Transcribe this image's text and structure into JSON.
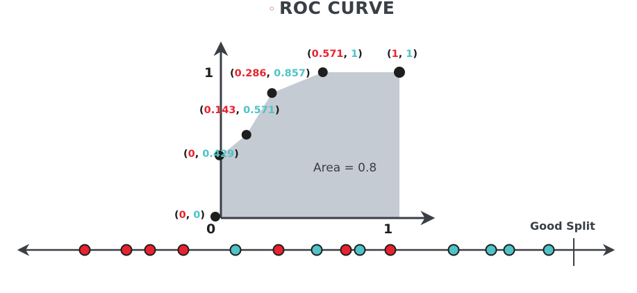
{
  "title": {
    "bullet": "◦",
    "text": "ROC CURVE"
  },
  "colors": {
    "red": "#e8232f",
    "teal": "#4fc3c7",
    "axis": "#3a3f46",
    "fill": "#c5cbd2",
    "point": "#1e1e1e"
  },
  "chart_data": {
    "type": "area",
    "x": [
      0,
      0,
      0.143,
      0.286,
      0.571,
      1
    ],
    "y": [
      0,
      0.429,
      0.571,
      0.857,
      1,
      1
    ],
    "xlim": [
      0,
      1
    ],
    "ylim": [
      0,
      1
    ],
    "x_ticks": [
      "0",
      "1"
    ],
    "y_ticks": [
      "1"
    ],
    "annotation": "Area = 0.8",
    "point_labels": [
      {
        "x": "0",
        "y": "0"
      },
      {
        "x": "0",
        "y": "0.429"
      },
      {
        "x": "0.143",
        "y": "0.571"
      },
      {
        "x": "0.286",
        "y": "0.857"
      },
      {
        "x": "0.571",
        "y": "1"
      },
      {
        "x": "1",
        "y": "1"
      }
    ]
  },
  "number_line": {
    "good_split_label": "Good Split",
    "points": [
      {
        "x": 122,
        "class": "red"
      },
      {
        "x": 182,
        "class": "red"
      },
      {
        "x": 216,
        "class": "red"
      },
      {
        "x": 264,
        "class": "red"
      },
      {
        "x": 339,
        "class": "teal"
      },
      {
        "x": 401,
        "class": "red"
      },
      {
        "x": 456,
        "class": "teal"
      },
      {
        "x": 498,
        "class": "red"
      },
      {
        "x": 518,
        "class": "teal"
      },
      {
        "x": 562,
        "class": "red"
      },
      {
        "x": 653,
        "class": "teal"
      },
      {
        "x": 707,
        "class": "teal"
      },
      {
        "x": 733,
        "class": "teal"
      },
      {
        "x": 790,
        "class": "teal"
      }
    ]
  }
}
